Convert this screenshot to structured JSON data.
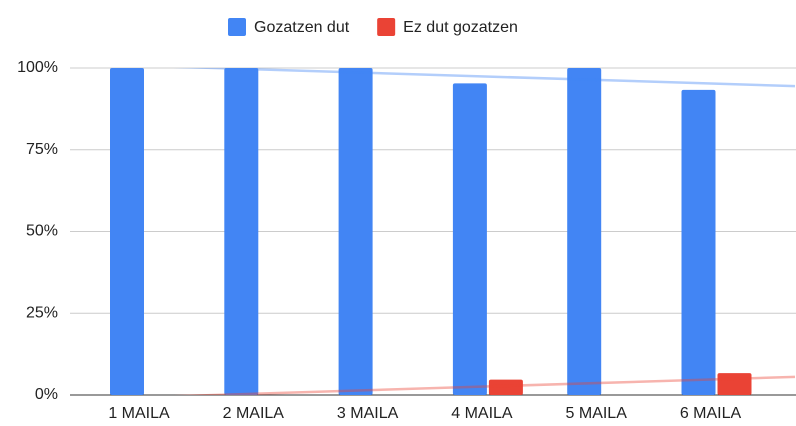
{
  "chart_data": {
    "type": "bar",
    "categories": [
      "1 MAILA",
      "2 MAILA",
      "3 MAILA",
      "4 MAILA",
      "5 MAILA",
      "6 MAILA"
    ],
    "series": [
      {
        "name": "Gozatzen dut",
        "color": "#4285f4",
        "values": [
          100,
          100,
          100,
          95.3,
          100,
          93.3
        ]
      },
      {
        "name": "Ez dut gozatzen",
        "color": "#ea4335",
        "values": [
          0,
          0,
          0,
          4.7,
          0,
          6.7
        ]
      }
    ],
    "ylim": [
      0,
      100
    ],
    "yticks": [
      {
        "value": 0,
        "label": "0%"
      },
      {
        "value": 25,
        "label": "25%"
      },
      {
        "value": 50,
        "label": "50%"
      },
      {
        "value": 75,
        "label": "75%"
      },
      {
        "value": 100,
        "label": "100%"
      }
    ],
    "grid": true,
    "legend": "top",
    "trendline": true
  }
}
